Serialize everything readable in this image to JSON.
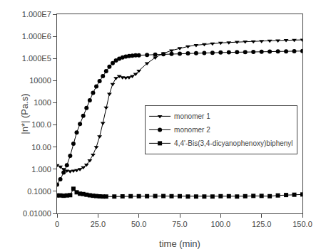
{
  "chart_data": {
    "type": "line",
    "xlabel": "time (min)",
    "ylabel": "|n*| (Pa.s)",
    "log": "y",
    "grid": false,
    "legend": "right",
    "xlim": [
      0,
      150
    ],
    "ylim": [
      0.01,
      10000000.0
    ],
    "xticks": [
      0,
      {
        "value": 25.0,
        "label": "25.0"
      },
      {
        "value": 50.0,
        "label": "50.0"
      },
      {
        "value": 75.0,
        "label": "75.0"
      },
      {
        "value": 100.0,
        "label": "100.0"
      },
      {
        "value": 125.0,
        "label": "125.0"
      },
      {
        "value": 150.0,
        "label": "150.0"
      }
    ],
    "yticks": [
      {
        "value": 0.01,
        "label": "0.01000"
      },
      {
        "value": 0.1,
        "label": "0.1000"
      },
      {
        "value": 1,
        "label": "1.000"
      },
      {
        "value": 10,
        "label": "10.00"
      },
      {
        "value": 100,
        "label": "100.0"
      },
      1000,
      10000,
      {
        "value": 100000,
        "label": "1.000E5"
      },
      {
        "value": 1000000,
        "label": "1.000E6"
      },
      {
        "value": 10000000,
        "label": "1.000E7"
      }
    ],
    "series": [
      {
        "name": "monomer 1",
        "color": "#000000",
        "marker": "triangle-down",
        "x": [
          0,
          2,
          4,
          6,
          8,
          10,
          12,
          14,
          16,
          18,
          20,
          22,
          24,
          26,
          28,
          30,
          32,
          34,
          36,
          38,
          40,
          42,
          44,
          46,
          48,
          50,
          55,
          60,
          65,
          70,
          75,
          80,
          85,
          90,
          95,
          100,
          105,
          110,
          115,
          120,
          125,
          130,
          135,
          140,
          145,
          150
        ],
        "values": [
          1.5,
          1.3,
          1.0,
          0.85,
          0.8,
          0.85,
          0.9,
          1.0,
          1.2,
          1.6,
          2.5,
          4.5,
          10.0,
          30.0,
          120.0,
          600.0,
          2500.0,
          7000.0,
          13000.0,
          16000.0,
          14000.0,
          13500.0,
          14000.0,
          16000.0,
          20000.0,
          28000.0,
          60000.0,
          110000.0,
          170000.0,
          230000.0,
          290000.0,
          350000.0,
          400000.0,
          440000.0,
          475000.0,
          505000.0,
          530000.0,
          555000.0,
          575000.0,
          595000.0,
          615000.0,
          635000.0,
          650000.0,
          665000.0,
          680000.0,
          695000.0
        ]
      },
      {
        "name": "monomer 2",
        "color": "#000000",
        "marker": "circle",
        "x": [
          0,
          2,
          4,
          6,
          8,
          10,
          12,
          14,
          16,
          18,
          20,
          22,
          24,
          26,
          28,
          30,
          32,
          34,
          36,
          38,
          40,
          42,
          44,
          46,
          48,
          50,
          55,
          60,
          65,
          70,
          75,
          80,
          85,
          90,
          95,
          100,
          105,
          110,
          115,
          120,
          125,
          130,
          135,
          140,
          145,
          150
        ],
        "values": [
          0.2,
          0.35,
          0.7,
          1.5,
          4.0,
          14.0,
          45.0,
          110.0,
          260.0,
          580.0,
          1300.0,
          2800.0,
          5500.0,
          9500.0,
          16000.0,
          27000.0,
          43000.0,
          62000.0,
          82000.0,
          98000.0,
          112000.0,
          122000.0,
          130000.0,
          135000.0,
          138000.0,
          140000.0,
          145000.0,
          150000.0,
          155000.0,
          160000.0,
          165000.0,
          170000.0,
          175000.0,
          178000.0,
          182000.0,
          186000.0,
          190000.0,
          193000.0,
          196000.0,
          199000.0,
          202000.0,
          205000.0,
          208000.0,
          211000.0,
          214000.0,
          217000.0
        ]
      },
      {
        "name": "4,4'-Bis(3,4-dicyanophenoxy)biphenyl",
        "color": "#000000",
        "marker": "square",
        "x": [
          0,
          2,
          4,
          6,
          8,
          10,
          12,
          14,
          16,
          18,
          20,
          22,
          24,
          26,
          28,
          30,
          35,
          40,
          45,
          50,
          55,
          60,
          65,
          70,
          75,
          80,
          85,
          90,
          95,
          100,
          105,
          110,
          115,
          120,
          125,
          130,
          135,
          140,
          145,
          150
        ],
        "values": [
          0.065,
          0.065,
          0.063,
          0.065,
          0.067,
          0.13,
          0.09,
          0.078,
          0.075,
          0.07,
          0.066,
          0.063,
          0.061,
          0.059,
          0.058,
          0.058,
          0.058,
          0.059,
          0.06,
          0.06,
          0.06,
          0.061,
          0.061,
          0.06,
          0.06,
          0.058,
          0.058,
          0.058,
          0.058,
          0.06,
          0.06,
          0.058,
          0.06,
          0.062,
          0.062,
          0.06,
          0.065,
          0.068,
          0.07,
          0.072
        ]
      }
    ]
  }
}
